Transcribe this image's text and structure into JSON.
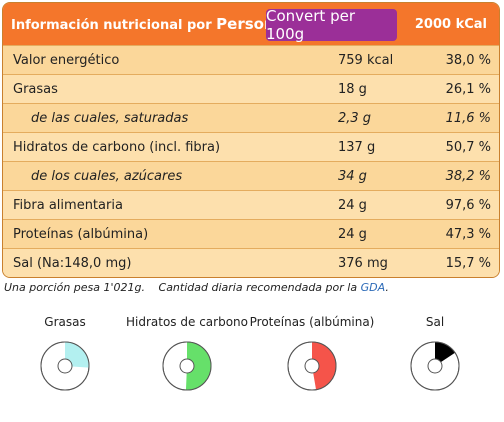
{
  "header": {
    "title_prefix": "Información nutricional por",
    "title_person": "Person",
    "convert_button": "Convert per 100g",
    "kcal_reference": "2000 kCal"
  },
  "rows": [
    {
      "label": "Valor energético",
      "amount": "759 kcal",
      "percent": "38,0 %"
    },
    {
      "label": "Grasas",
      "amount": "18 g",
      "percent": "26,1 %"
    },
    {
      "label": "de las cuales, saturadas",
      "amount": "2,3 g",
      "percent": "11,6 %"
    },
    {
      "label": "Hidratos de carbono (incl. fibra)",
      "amount": "137 g",
      "percent": "50,7 %"
    },
    {
      "label": "de los cuales, azúcares",
      "amount": "34 g",
      "percent": "38,2 %"
    },
    {
      "label": "Fibra alimentaria",
      "amount": "24 g",
      "percent": "97,6 %"
    },
    {
      "label": "Proteínas (albúmina)",
      "amount": "24 g",
      "percent": "47,3 %"
    },
    {
      "label": "Sal (Na:148,0 mg)",
      "amount": "376 mg",
      "percent": "15,7 %"
    }
  ],
  "footnote": {
    "portion": "Una porción pesa 1'021g.",
    "recommended": "Cantidad diaria recomendada por la",
    "gda_link": "GDA",
    "period": "."
  },
  "gauges": [
    {
      "label": "Grasas",
      "fraction": 0.261,
      "color": "#b3f0f0"
    },
    {
      "label": "Hidratos de carbono",
      "fraction": 0.507,
      "color": "#66e06a"
    },
    {
      "label": "Proteínas (albúmina)",
      "fraction": 0.473,
      "color": "#f5544a"
    },
    {
      "label": "Sal",
      "fraction": 0.157,
      "color": "#000000"
    }
  ]
}
